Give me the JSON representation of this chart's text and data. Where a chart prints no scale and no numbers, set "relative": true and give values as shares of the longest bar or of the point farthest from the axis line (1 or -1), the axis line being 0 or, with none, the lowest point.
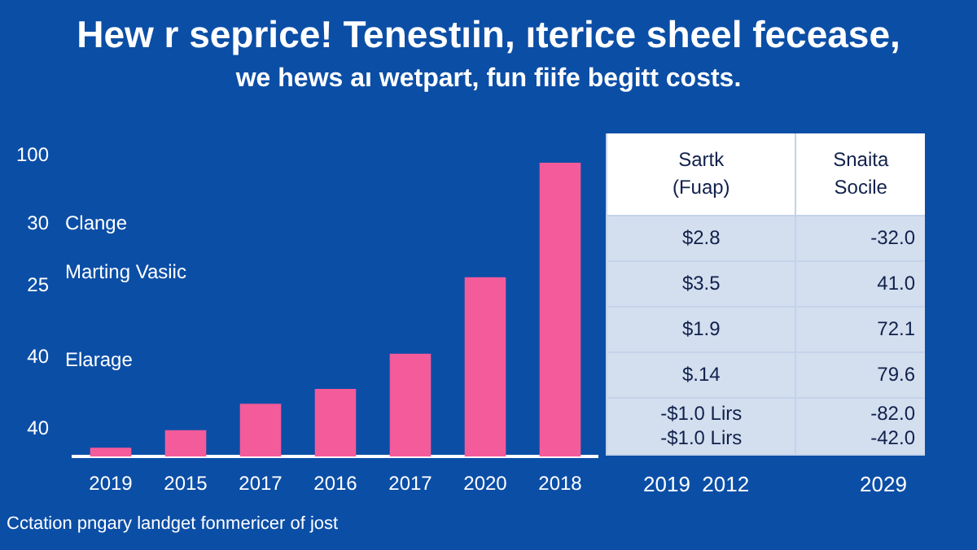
{
  "chart_data": [
    {
      "type": "bar",
      "title": "Hew r seprice! Tenestıin, ıterice sheel fecease,",
      "subtitle": "we hews aı wetpart, fun fiife begitt costs.",
      "relative": true,
      "categories": [
        "2019",
        "2015",
        "2017",
        "2016",
        "2017",
        "2020",
        "2018"
      ],
      "values": [
        0.03,
        0.09,
        0.18,
        0.23,
        0.35,
        0.61,
        1
      ],
      "color": "#f45b9a",
      "grid": false,
      "legend": false,
      "annotations": [
        "100",
        "30",
        "25",
        "40",
        "40",
        "Clange",
        "Marting Vasiic",
        "Elarage",
        "Cctation pngary landget fonmericer of jost"
      ]
    },
    {
      "type": "other",
      "annotations": [
        "Sartk\n(Fuap)",
        "Snaita\nSocile",
        "$2.8",
        "-32.0",
        "$3.5",
        "41.0",
        "$1.9",
        "72.1",
        "$.14",
        "79.6",
        "-$1.0 Lirs\n-$1.0 Lirs",
        "-82.0\n-42.0",
        "2019  2012",
        "2029"
      ]
    }
  ]
}
